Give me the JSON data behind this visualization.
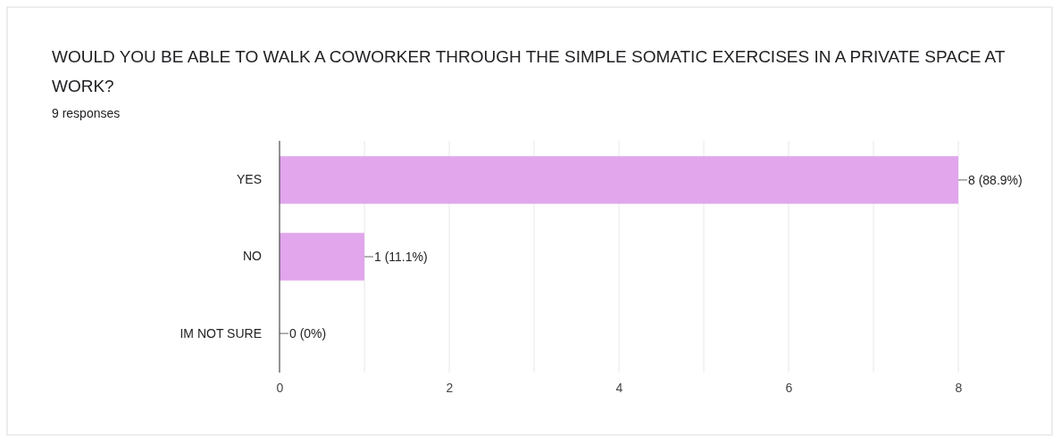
{
  "chart_data": {
    "type": "bar",
    "orientation": "horizontal",
    "title": "WOULD YOU BE ABLE TO WALK A COWORKER THROUGH THE SIMPLE SOMATIC EXERCISES IN A PRIVATE SPACE AT WORK?",
    "subtitle": "9 responses",
    "categories": [
      "YES",
      "NO",
      "IM NOT SURE"
    ],
    "values": [
      8,
      1,
      0
    ],
    "value_labels": [
      "8 (88.9%)",
      "1 (11.1%)",
      "0 (0%)"
    ],
    "color": "#e1a6ec",
    "xlim": [
      0,
      8
    ],
    "xticks": [
      0,
      {
        "value": 1,
        "label": null
      },
      2,
      {
        "value": 3,
        "label": null
      },
      4,
      {
        "value": 5,
        "label": null
      },
      6,
      {
        "value": 7,
        "label": null
      },
      8
    ],
    "grid": "x"
  }
}
